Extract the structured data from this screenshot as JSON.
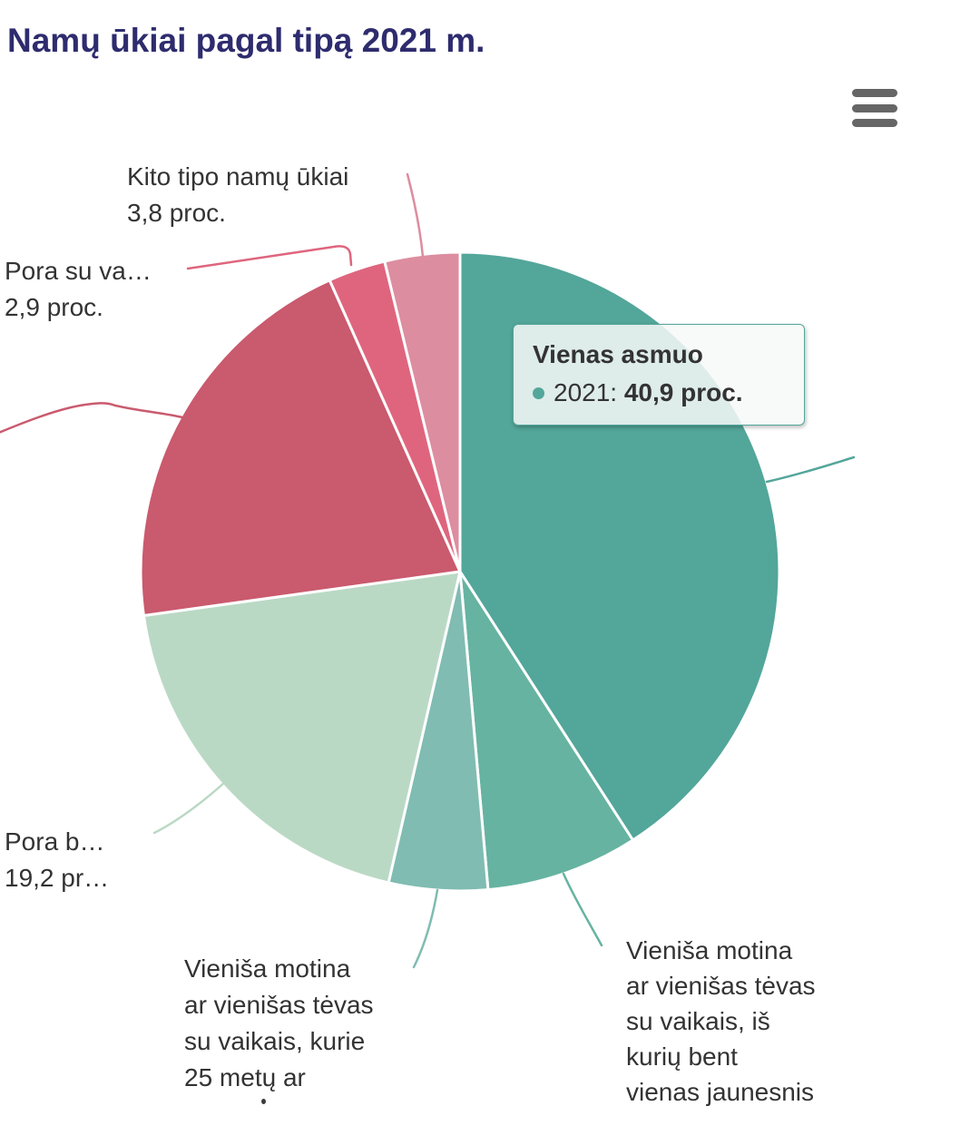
{
  "header": {
    "title": "Namų ūkiai pagal tipą 2021 m."
  },
  "menu": {
    "icon": "hamburger-icon"
  },
  "chart_data": {
    "type": "pie",
    "title": "Namų ūkiai pagal tipą 2021 m.",
    "unit": "proc.",
    "year": "2021",
    "start_angle_deg": 0,
    "direction": "clockwise",
    "slices": [
      {
        "name": "Vienas asmuo",
        "value": 40.9,
        "color": "#53a69a",
        "label_shown": false,
        "tooltip_shown": true
      },
      {
        "name": "Vieniša motina ar vienišas tėvas su vaikais, iš kurių bent vienas jaunesnis",
        "value": 7.7,
        "color": "#66b3a1",
        "label_shown": true
      },
      {
        "name": "Vieniša motina ar vienišas tėvas su vaikais, kurie 25 metų ar",
        "value": 5.0,
        "color": "#80bcb2",
        "label_shown": true
      },
      {
        "name": "Pora b…",
        "value": 19.2,
        "color": "#bad9c5",
        "label_shown": true
      },
      {
        "name": "",
        "value": 20.5,
        "color": "#ca5a6e",
        "label_shown": false
      },
      {
        "name": "Pora su va…",
        "value": 2.9,
        "color": "#df657e",
        "label_shown": true
      },
      {
        "name": "Kito tipo namų ūkiai",
        "value": 3.8,
        "color": "#dd8da0",
        "label_shown": true
      }
    ]
  },
  "labels": {
    "kito_tipo": {
      "line1": "Kito tipo namų ūkiai",
      "line2": "3,8 proc."
    },
    "pora_su_va": {
      "line1": "Pora su va…",
      "line2": "2,9 proc."
    },
    "pora_b": {
      "line1": "Pora b…",
      "line2": "19,2 pr…"
    },
    "single_parent_older": {
      "lines": [
        "Vieniša motina",
        "ar vienišas tėvas",
        "su vaikais, kurie",
        "25 metų ar"
      ]
    },
    "single_parent_younger": {
      "lines": [
        "Vieniša motina",
        "ar vienišas tėvas",
        "su vaikais, iš",
        "kurių bent",
        "vienas jaunesnis"
      ]
    }
  },
  "tooltip": {
    "title": "Vienas asmuo",
    "series_name": "2021",
    "separator": ": ",
    "value": "40,9 proc.",
    "bullet_color": "#53a69a",
    "border_color": "#53a69a"
  }
}
